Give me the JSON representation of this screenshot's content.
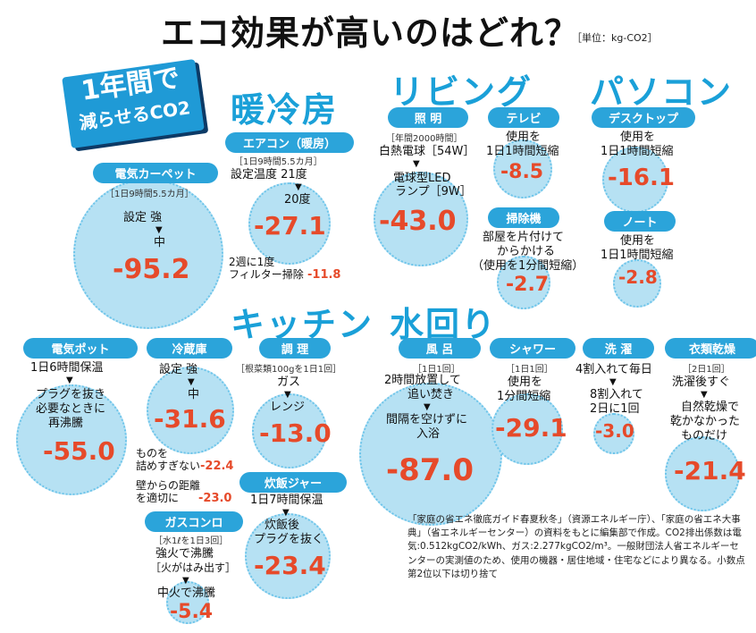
{
  "title": "エコ効果が高いのはどれ？",
  "unit": "［単位：kg-CO2］",
  "badge": {
    "line1": "1年間で",
    "line2": "減らせるCO2"
  },
  "sections": {
    "danreibo": "暖冷房",
    "living": "リビング",
    "pc": "パソコン",
    "kitchen": "キッチン",
    "mizumawari": "水回り"
  },
  "items": {
    "carpet": {
      "tag": "電気カーペット",
      "sub": "［1日9時間5.5カ月］",
      "t1": "設定 強",
      "t2": "中",
      "value": "-95.2"
    },
    "aircon": {
      "tag": "エアコン（暖房）",
      "sub": "［1日9時間5.5カ月］",
      "t1": "設定温度 21度",
      "t2": "20度",
      "value": "-27.1",
      "extra1": "2週に1度",
      "extra2": "フィルター掃除",
      "extra_value": "-11.8"
    },
    "lighting": {
      "tag": "照 明",
      "sub": "［年間2000時間］",
      "t1": "白熱電球［54W］",
      "t2": "電球型LED",
      "t3": "ランプ［9W］",
      "value": "-43.0"
    },
    "tv": {
      "tag": "テレビ",
      "t1": "使用を",
      "t2": "1日1時間短縮",
      "value": "-8.5"
    },
    "vacuum": {
      "tag": "掃除機",
      "t1": "部屋を片付けて",
      "t2": "からかける",
      "t3": "（使用を1分間短縮）",
      "value": "-2.7"
    },
    "desktop": {
      "tag": "デスクトップ",
      "t1": "使用を",
      "t2": "1日1時間短縮",
      "value": "-16.1"
    },
    "notebook": {
      "tag": "ノート",
      "t1": "使用を",
      "t2": "1日1時間短縮",
      "value": "-2.8"
    },
    "pot": {
      "tag": "電気ポット",
      "t1": "1日6時間保温",
      "t2": "プラグを抜き",
      "t3": "必要なときに",
      "t4": "再沸騰",
      "value": "-55.0"
    },
    "fridge": {
      "tag": "冷蔵庫",
      "t1": "設定 強",
      "t2": "中",
      "value": "-31.6",
      "e1a": "ものを",
      "e1b": "詰めすぎない",
      "e1v": "-22.4",
      "e2a": "壁からの距離",
      "e2b": "を適切に",
      "e2v": "-23.0"
    },
    "cooking": {
      "tag": "調 理",
      "sub": "［根菜類100gを1日1回］",
      "t1": "ガス",
      "t2": "レンジ",
      "value": "-13.0"
    },
    "ricecooker": {
      "tag": "炊飯ジャー",
      "t1": "1日7時間保温",
      "t2": "炊飯後",
      "t3": "プラグを抜く",
      "value": "-23.4"
    },
    "gas": {
      "tag": "ガスコンロ",
      "sub": "［水1ℓを1日3回］",
      "t1": "強火で沸騰",
      "t2": "［火がはみ出す］",
      "t3": "中火で沸騰",
      "value": "-5.4"
    },
    "bath": {
      "tag": "風 呂",
      "sub": "［1日1回］",
      "t1": "2時間放置して",
      "t2": "追い焚き",
      "t3": "間隔を空けずに",
      "t4": "入浴",
      "value": "-87.0"
    },
    "shower": {
      "tag": "シャワー",
      "sub": "［1日1回］",
      "t1": "使用を",
      "t2": "1分間短縮",
      "value": "-29.1"
    },
    "laundry": {
      "tag": "洗 濯",
      "t1": "4割入れて毎日",
      "t2": "8割入れて",
      "t3": "2日に1回",
      "value": "-3.0"
    },
    "dryer": {
      "tag": "衣類乾燥",
      "sub": "［2日1回］",
      "t1": "洗濯後すぐ",
      "t2": "自然乾燥で",
      "t3": "乾かなかった",
      "t4": "ものだけ",
      "value": "-21.4"
    }
  },
  "note": "「家庭の省エネ徹底ガイド春夏秋冬」（資源エネルギー庁）、「家庭の省エネ大事典」（省エネルギーセンター）の資料をもとに編集部で作成。CO2排出係数は電気:0.512kgCO2/kWh、ガス:2.277kgCO2/m³。一般財団法人省エネルギーセンターの実測値のため、使用の機器・居住地域・住宅などにより異なる。小数点第2位以下は切り捨て"
}
